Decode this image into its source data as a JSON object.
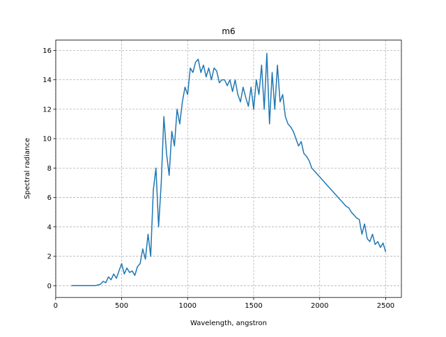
{
  "chart_data": {
    "type": "line",
    "title": "m6",
    "x_label": "Wavelength, angstron",
    "y_label": "Spectral radiance",
    "x": [
      120,
      140,
      160,
      180,
      200,
      220,
      240,
      260,
      280,
      300,
      320,
      340,
      360,
      380,
      400,
      420,
      440,
      460,
      480,
      500,
      520,
      540,
      560,
      580,
      600,
      620,
      640,
      660,
      680,
      700,
      720,
      740,
      760,
      780,
      800,
      820,
      840,
      860,
      880,
      900,
      920,
      940,
      960,
      980,
      1000,
      1020,
      1040,
      1060,
      1080,
      1100,
      1120,
      1140,
      1160,
      1180,
      1200,
      1220,
      1240,
      1260,
      1280,
      1300,
      1320,
      1340,
      1360,
      1380,
      1400,
      1420,
      1440,
      1460,
      1480,
      1500,
      1520,
      1540,
      1560,
      1580,
      1600,
      1620,
      1640,
      1660,
      1680,
      1700,
      1720,
      1740,
      1760,
      1780,
      1800,
      1820,
      1840,
      1860,
      1880,
      1900,
      1920,
      1940,
      1960,
      1980,
      2000,
      2020,
      2040,
      2060,
      2080,
      2100,
      2120,
      2140,
      2160,
      2180,
      2200,
      2220,
      2240,
      2260,
      2280,
      2300,
      2320,
      2340,
      2360,
      2380,
      2400,
      2420,
      2440,
      2460,
      2480,
      2500
    ],
    "series": [
      {
        "color": "#1f77b4",
        "values": [
          0,
          0,
          0,
          0,
          0,
          0,
          0,
          0,
          0,
          0,
          0.05,
          0.1,
          0.3,
          0.2,
          0.6,
          0.4,
          0.8,
          0.5,
          1.0,
          1.5,
          0.8,
          1.2,
          0.9,
          1.0,
          0.7,
          1.3,
          1.5,
          2.5,
          1.8,
          3.5,
          2.0,
          6.5,
          8.0,
          4.0,
          7.0,
          11.5,
          9.0,
          7.5,
          10.5,
          9.5,
          12.0,
          11.0,
          12.5,
          13.5,
          13.0,
          14.8,
          14.5,
          15.2,
          15.4,
          14.5,
          15.0,
          14.2,
          14.8,
          14.0,
          14.8,
          14.6,
          13.8,
          14.0,
          14.0,
          13.6,
          14.0,
          13.2,
          14.0,
          13.0,
          12.5,
          13.5,
          12.8,
          12.2,
          13.5,
          12.0,
          14.0,
          13.0,
          15.0,
          12.0,
          15.8,
          11.0,
          14.5,
          12.0,
          15.0,
          12.5,
          13.0,
          11.5,
          11.0,
          10.8,
          10.5,
          10.0,
          9.5,
          9.8,
          9.0,
          8.8,
          8.5,
          8.0,
          7.8,
          7.6,
          7.4,
          7.2,
          7.0,
          6.8,
          6.6,
          6.4,
          6.2,
          6.0,
          5.8,
          5.6,
          5.4,
          5.3,
          5.0,
          4.8,
          4.6,
          4.5,
          3.5,
          4.2,
          3.2,
          3.0,
          3.5,
          2.8,
          3.0,
          2.6,
          2.9,
          2.3
        ]
      }
    ],
    "xlim": [
      1,
      2619
    ],
    "ylim": [
      -0.8,
      16.7
    ],
    "xticks": [
      0,
      500,
      1000,
      1500,
      2000,
      2500
    ],
    "yticks": [
      0,
      2,
      4,
      6,
      8,
      10,
      12,
      14,
      16
    ],
    "grid": true
  }
}
